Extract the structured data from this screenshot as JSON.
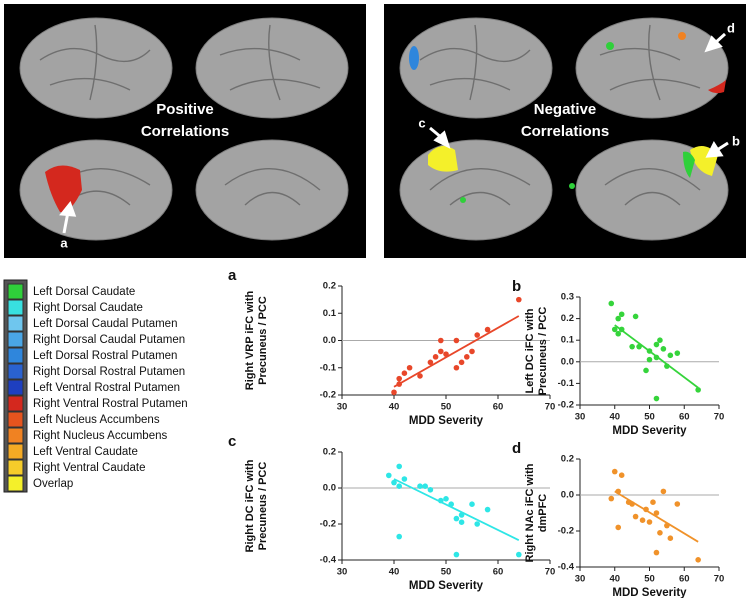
{
  "brain_panels": [
    {
      "title": [
        "Positive",
        "Correlations"
      ],
      "arrows": [
        "a"
      ]
    },
    {
      "title": [
        "Negative",
        "Correlations"
      ],
      "arrows": [
        "c",
        "b",
        "d"
      ]
    }
  ],
  "legend": {
    "items": [
      {
        "label": "Left Dorsal Caudate",
        "color": "#2fd03a"
      },
      {
        "label": "Right Dorsal Caudate",
        "color": "#38e0e0"
      },
      {
        "label": "Left Dorsal Caudal Putamen",
        "color": "#6fc6ee"
      },
      {
        "label": "Right Dorsal Caudal Putamen",
        "color": "#4aa6e6"
      },
      {
        "label": "Left Dorsal Rostral Putamen",
        "color": "#2f86dc"
      },
      {
        "label": "Right Dorsal Rostral Putamen",
        "color": "#2a62d0"
      },
      {
        "label": "Left Ventral Rostral Putamen",
        "color": "#1e3fc0"
      },
      {
        "label": "Right Ventral Rostral Putamen",
        "color": "#d4281e"
      },
      {
        "label": "Left Nucleus Accumbens",
        "color": "#e6541e"
      },
      {
        "label": "Right Nucleus Accumbens",
        "color": "#f08222"
      },
      {
        "label": "Left Ventral Caudate",
        "color": "#f4aa24"
      },
      {
        "label": "Right Ventral Caudate",
        "color": "#f6cc2a"
      },
      {
        "label": "Overlap",
        "color": "#f4f02a"
      }
    ]
  },
  "chart_data": [
    {
      "type": "scatter",
      "label": "a",
      "ylabel": [
        "Right VRP iFC with",
        "Precuneus / PCC"
      ],
      "xlabel": "MDD Severity",
      "color": "#e8472a",
      "x": [
        40,
        41,
        42,
        41,
        43,
        45,
        47,
        48,
        49,
        49,
        50,
        52,
        52,
        53,
        54,
        55,
        56,
        58,
        64
      ],
      "values": [
        -0.19,
        -0.16,
        -0.12,
        -0.14,
        -0.1,
        -0.13,
        -0.08,
        -0.06,
        -0.04,
        0.0,
        -0.05,
        -0.1,
        0.0,
        -0.08,
        -0.06,
        -0.04,
        0.02,
        0.04,
        0.15
      ],
      "fit": {
        "x": [
          40,
          64
        ],
        "y": [
          -0.17,
          0.09
        ]
      },
      "xlim": [
        30,
        70
      ],
      "xticks": [
        30,
        40,
        50,
        60,
        70
      ],
      "ylim": [
        -0.2,
        0.2
      ],
      "yticks": [
        -0.2,
        -0.1,
        {
          "value": 0,
          "label": "0.0"
        },
        0.1,
        0.2
      ]
    },
    {
      "type": "scatter",
      "label": "b",
      "ylabel": [
        "Left DC iFC with",
        "Precuneus / PCC"
      ],
      "xlabel": "MDD Severity",
      "color": "#35d43b",
      "x": [
        39,
        40,
        41,
        41,
        42,
        42,
        45,
        46,
        47,
        49,
        50,
        50,
        52,
        52,
        52,
        53,
        54,
        55,
        56,
        58,
        64
      ],
      "values": [
        0.27,
        0.15,
        0.2,
        0.13,
        0.22,
        0.15,
        0.07,
        0.21,
        0.07,
        -0.04,
        0.05,
        0.01,
        0.08,
        0.02,
        -0.17,
        0.1,
        0.06,
        -0.02,
        0.03,
        0.04,
        -0.13
      ],
      "fit": {
        "x": [
          40,
          64
        ],
        "y": [
          0.17,
          -0.12
        ]
      },
      "xlim": [
        30,
        70
      ],
      "xticks": [
        30,
        40,
        50,
        60,
        70
      ],
      "ylim": [
        -0.2,
        0.3
      ],
      "yticks": [
        -0.2,
        -0.1,
        {
          "value": 0,
          "label": "0.0"
        },
        0.1,
        0.2,
        0.3
      ]
    },
    {
      "type": "scatter",
      "label": "c",
      "ylabel": [
        "Right DC iFC with",
        "Precuneus / PCC"
      ],
      "xlabel": "MDD Severity",
      "color": "#2ee6e6",
      "x": [
        39,
        40,
        41,
        41,
        41,
        42,
        45,
        46,
        47,
        49,
        50,
        51,
        52,
        52,
        53,
        53,
        55,
        56,
        58,
        64
      ],
      "values": [
        0.07,
        0.03,
        0.12,
        0.01,
        -0.27,
        0.05,
        0.01,
        0.01,
        -0.01,
        -0.07,
        -0.06,
        -0.09,
        -0.17,
        -0.37,
        -0.15,
        -0.19,
        -0.09,
        -0.2,
        -0.12,
        -0.37
      ],
      "fit": {
        "x": [
          40,
          64
        ],
        "y": [
          0.05,
          -0.29
        ]
      },
      "xlim": [
        30,
        70
      ],
      "xticks": [
        30,
        40,
        50,
        60,
        70
      ],
      "ylim": [
        -0.4,
        0.2
      ],
      "yticks": [
        -0.4,
        -0.2,
        {
          "value": 0,
          "label": "0.0"
        },
        0.2
      ]
    },
    {
      "type": "scatter",
      "label": "d",
      "ylabel": [
        "Right NAc iFC with",
        "dmPFC"
      ],
      "xlabel": "MDD Severity",
      "color": "#f0922a",
      "x": [
        39,
        40,
        41,
        41,
        42,
        44,
        45,
        46,
        48,
        49,
        50,
        51,
        52,
        52,
        53,
        54,
        55,
        56,
        58,
        64
      ],
      "values": [
        -0.02,
        0.13,
        -0.18,
        0.02,
        0.11,
        -0.04,
        -0.05,
        -0.12,
        -0.14,
        -0.08,
        -0.15,
        -0.04,
        -0.32,
        -0.1,
        -0.21,
        0.02,
        -0.17,
        -0.24,
        -0.05,
        -0.36
      ],
      "fit": {
        "x": [
          40,
          64
        ],
        "y": [
          0.02,
          -0.26
        ]
      },
      "xlim": [
        30,
        70
      ],
      "xticks": [
        30,
        40,
        50,
        60,
        70
      ],
      "ylim": [
        -0.4,
        0.2
      ],
      "yticks": [
        -0.4,
        -0.2,
        {
          "value": 0,
          "label": "0.0"
        },
        0.2
      ]
    }
  ]
}
